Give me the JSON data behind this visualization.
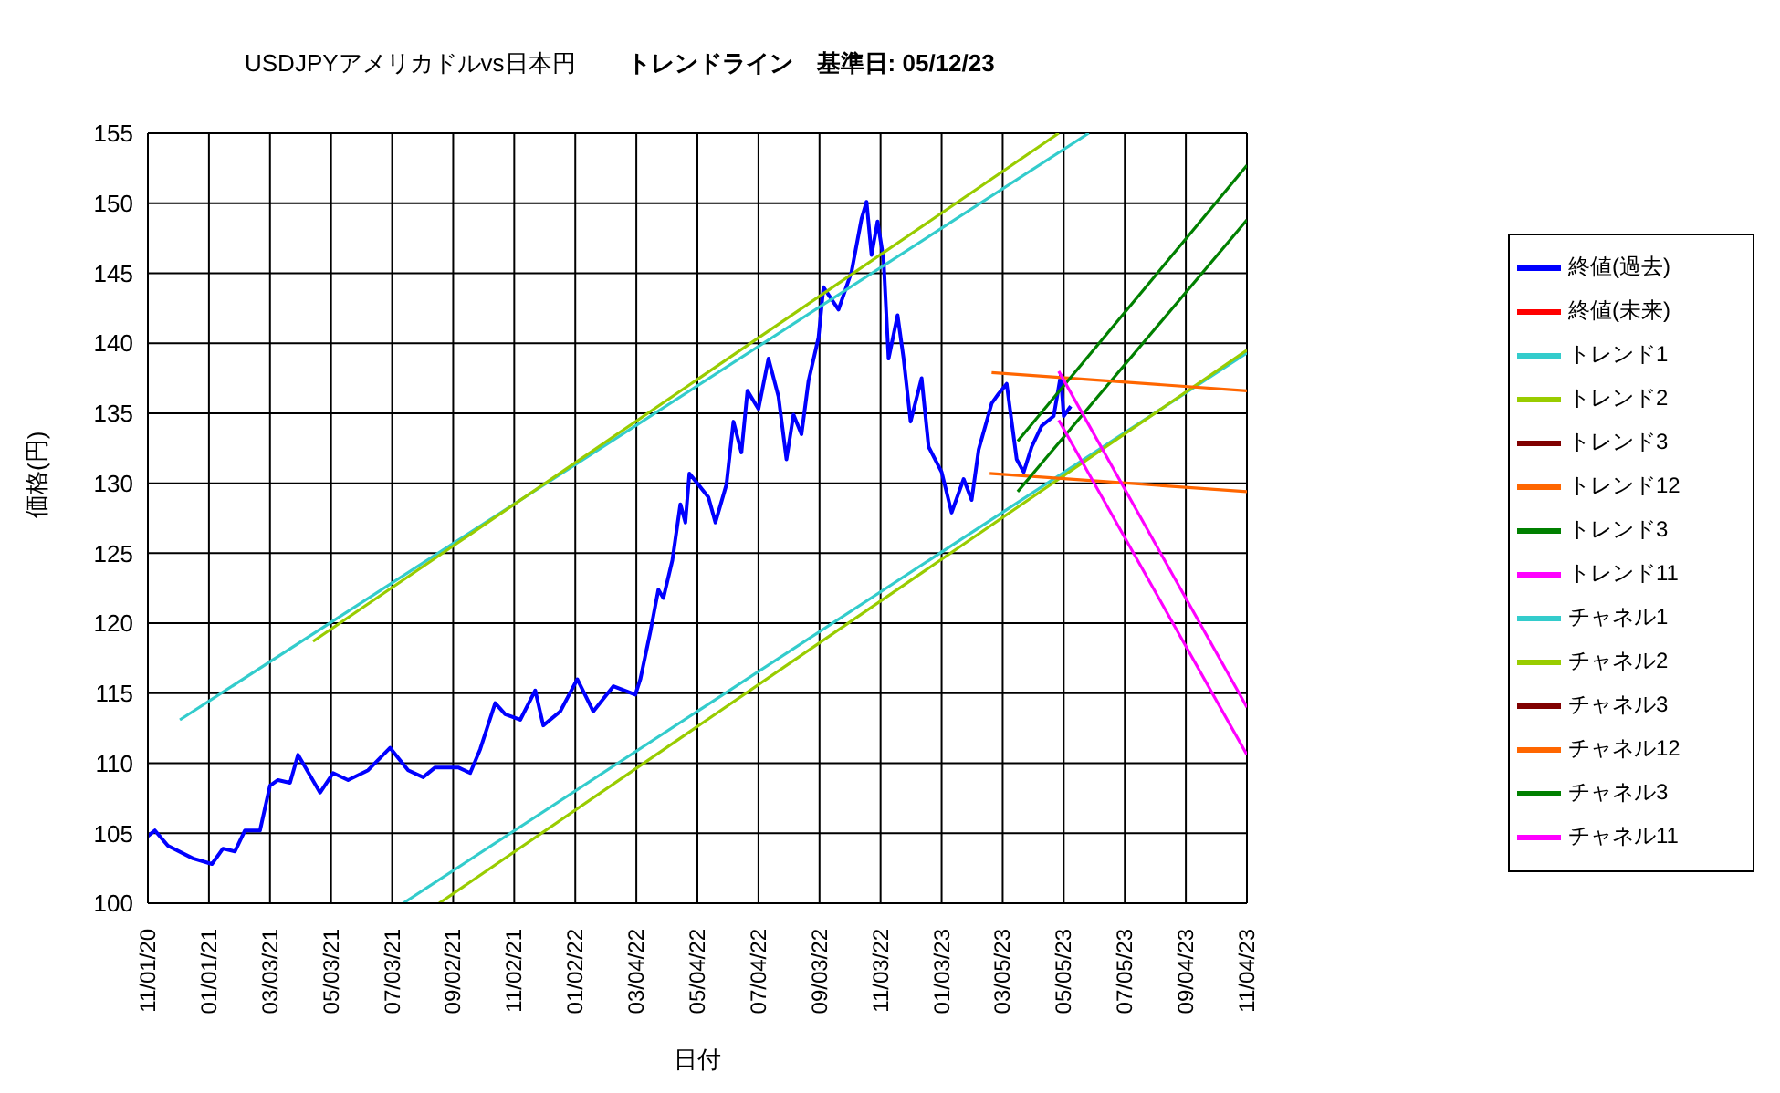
{
  "chart_data": {
    "type": "line",
    "title": "USDJPYアメリカドルvs日本円",
    "subtitle": "トレンドライン　基準日: 05/12/23",
    "xlabel": "日付",
    "ylabel": "価格(円)",
    "xlim": [
      "2020-11-01",
      "2023-11-04"
    ],
    "xticks": [
      {
        "value": "2020-11-01",
        "label": "11/01/20"
      },
      {
        "value": "2021-01-01",
        "label": "01/01/21"
      },
      {
        "value": "2021-03-03",
        "label": "03/03/21"
      },
      {
        "value": "2021-05-03",
        "label": "05/03/21"
      },
      {
        "value": "2021-07-03",
        "label": "07/03/21"
      },
      {
        "value": "2021-09-02",
        "label": "09/02/21"
      },
      {
        "value": "2021-11-02",
        "label": "11/02/21"
      },
      {
        "value": "2022-01-02",
        "label": "01/02/22"
      },
      {
        "value": "2022-03-04",
        "label": "03/04/22"
      },
      {
        "value": "2022-05-04",
        "label": "05/04/22"
      },
      {
        "value": "2022-07-04",
        "label": "07/04/22"
      },
      {
        "value": "2022-09-03",
        "label": "09/03/22"
      },
      {
        "value": "2022-11-03",
        "label": "11/03/22"
      },
      {
        "value": "2023-01-03",
        "label": "01/03/23"
      },
      {
        "value": "2023-03-05",
        "label": "03/05/23"
      },
      {
        "value": "2023-05-05",
        "label": "05/05/23"
      },
      {
        "value": "2023-07-05",
        "label": "07/05/23"
      },
      {
        "value": "2023-09-04",
        "label": "09/04/23"
      },
      {
        "value": "2023-11-04",
        "label": "11/04/23"
      }
    ],
    "ylim": [
      100,
      155
    ],
    "yticks": [
      100,
      105,
      110,
      115,
      120,
      125,
      130,
      135,
      140,
      145,
      150,
      155
    ],
    "grid": true,
    "legend": "right",
    "line_style": "solid",
    "series": [
      {
        "name": "終値(過去)",
        "color": "#0000ff",
        "x": [
          "2020-11-01",
          "2020-11-08",
          "2020-11-21",
          "2020-12-16",
          "2021-01-04",
          "2021-01-15",
          "2021-01-27",
          "2021-02-06",
          "2021-02-21",
          "2021-03-03",
          "2021-03-11",
          "2021-03-23",
          "2021-03-31",
          "2021-04-22",
          "2021-05-05",
          "2021-05-20",
          "2021-06-09",
          "2021-07-01",
          "2021-07-19",
          "2021-08-03",
          "2021-08-15",
          "2021-09-07",
          "2021-09-19",
          "2021-09-29",
          "2021-10-14",
          "2021-10-24",
          "2021-11-08",
          "2021-11-23",
          "2021-12-01",
          "2021-12-18",
          "2022-01-04",
          "2022-01-20",
          "2022-02-09",
          "2022-03-03",
          "2022-03-08",
          "2022-03-18",
          "2022-03-26",
          "2022-03-31",
          "2022-04-09",
          "2022-04-17",
          "2022-04-22",
          "2022-04-26",
          "2022-05-05",
          "2022-05-15",
          "2022-05-22",
          "2022-06-02",
          "2022-06-09",
          "2022-06-17",
          "2022-06-23",
          "2022-07-04",
          "2022-07-14",
          "2022-07-24",
          "2022-08-01",
          "2022-08-08",
          "2022-08-16",
          "2022-08-23",
          "2022-09-02",
          "2022-09-07",
          "2022-09-22",
          "2022-10-05",
          "2022-10-15",
          "2022-10-20",
          "2022-10-25",
          "2022-10-31",
          "2022-11-06",
          "2022-11-11",
          "2022-11-20",
          "2022-11-26",
          "2022-12-03",
          "2022-12-14",
          "2022-12-21",
          "2023-01-03",
          "2023-01-13",
          "2023-01-25",
          "2023-02-02",
          "2023-02-09",
          "2023-02-22",
          "2023-03-01",
          "2023-03-09",
          "2023-03-19",
          "2023-03-26",
          "2023-04-03",
          "2023-04-13",
          "2023-04-25",
          "2023-05-02",
          "2023-05-05",
          "2023-05-12"
        ],
        "values": [
          104.8,
          105.2,
          104.1,
          103.2,
          102.8,
          103.9,
          103.7,
          105.2,
          105.2,
          108.4,
          108.8,
          108.6,
          110.6,
          107.9,
          109.3,
          108.8,
          109.5,
          111.1,
          109.5,
          109.0,
          109.7,
          109.7,
          109.3,
          111.0,
          114.3,
          113.5,
          113.1,
          115.2,
          112.7,
          113.7,
          116.0,
          113.7,
          115.5,
          114.9,
          116.0,
          119.4,
          122.4,
          121.8,
          124.5,
          128.5,
          127.2,
          130.7,
          129.9,
          129.0,
          127.2,
          129.9,
          134.4,
          132.2,
          136.6,
          135.3,
          138.9,
          136.2,
          131.7,
          134.9,
          133.5,
          137.3,
          140.4,
          144.0,
          142.4,
          145.1,
          148.9,
          150.1,
          146.3,
          148.7,
          146.0,
          138.9,
          142.0,
          138.9,
          134.4,
          137.5,
          132.6,
          130.8,
          127.9,
          130.3,
          128.8,
          132.4,
          135.7,
          136.4,
          137.1,
          131.7,
          130.8,
          132.6,
          134.1,
          134.8,
          137.7,
          134.8,
          135.5
        ]
      },
      {
        "name": "終値(未来)",
        "color": "#ff0000"
      },
      {
        "name": "トレンド1",
        "color": "#33cccc",
        "x": [
          "2021-07-14",
          "2023-11-04"
        ],
        "values": [
          100,
          139.3
        ]
      },
      {
        "name": "トレンド2",
        "color": "#99cc00",
        "x": [
          "2021-08-19",
          "2023-11-04"
        ],
        "values": [
          100,
          139.5
        ]
      },
      {
        "name": "トレンド3",
        "color": "#800000"
      },
      {
        "name": "トレンド12",
        "color": "#ff6600",
        "x": [
          "2023-02-20",
          "2023-11-04"
        ],
        "values": [
          130.7,
          129.4
        ]
      },
      {
        "name": "トレンド3",
        "color": "#008000",
        "x": [
          "2023-03-20",
          "2023-11-04"
        ],
        "values": [
          129.4,
          148.8
        ]
      },
      {
        "name": "トレンド11",
        "color": "#ff00ff",
        "x": [
          "2023-04-30",
          "2023-11-04"
        ],
        "values": [
          134.5,
          110.6
        ]
      },
      {
        "name": "チャネル1",
        "color": "#33cccc",
        "x": [
          "2020-12-03",
          "2023-05-30"
        ],
        "values": [
          113.1,
          155
        ]
      },
      {
        "name": "チャネル2",
        "color": "#99cc00",
        "x": [
          "2021-04-15",
          "2023-04-30"
        ],
        "values": [
          118.7,
          155
        ]
      },
      {
        "name": "チャネル3",
        "color": "#800000"
      },
      {
        "name": "チャネル12",
        "color": "#ff6600",
        "x": [
          "2023-02-22",
          "2023-11-04"
        ],
        "values": [
          137.9,
          136.6
        ]
      },
      {
        "name": "チャネル3",
        "color": "#008000",
        "x": [
          "2023-03-20",
          "2023-11-04"
        ],
        "values": [
          133.0,
          152.7
        ]
      },
      {
        "name": "チャネル11",
        "color": "#ff00ff",
        "x": [
          "2023-04-30",
          "2023-11-04"
        ],
        "values": [
          138.0,
          114.0
        ]
      }
    ]
  }
}
